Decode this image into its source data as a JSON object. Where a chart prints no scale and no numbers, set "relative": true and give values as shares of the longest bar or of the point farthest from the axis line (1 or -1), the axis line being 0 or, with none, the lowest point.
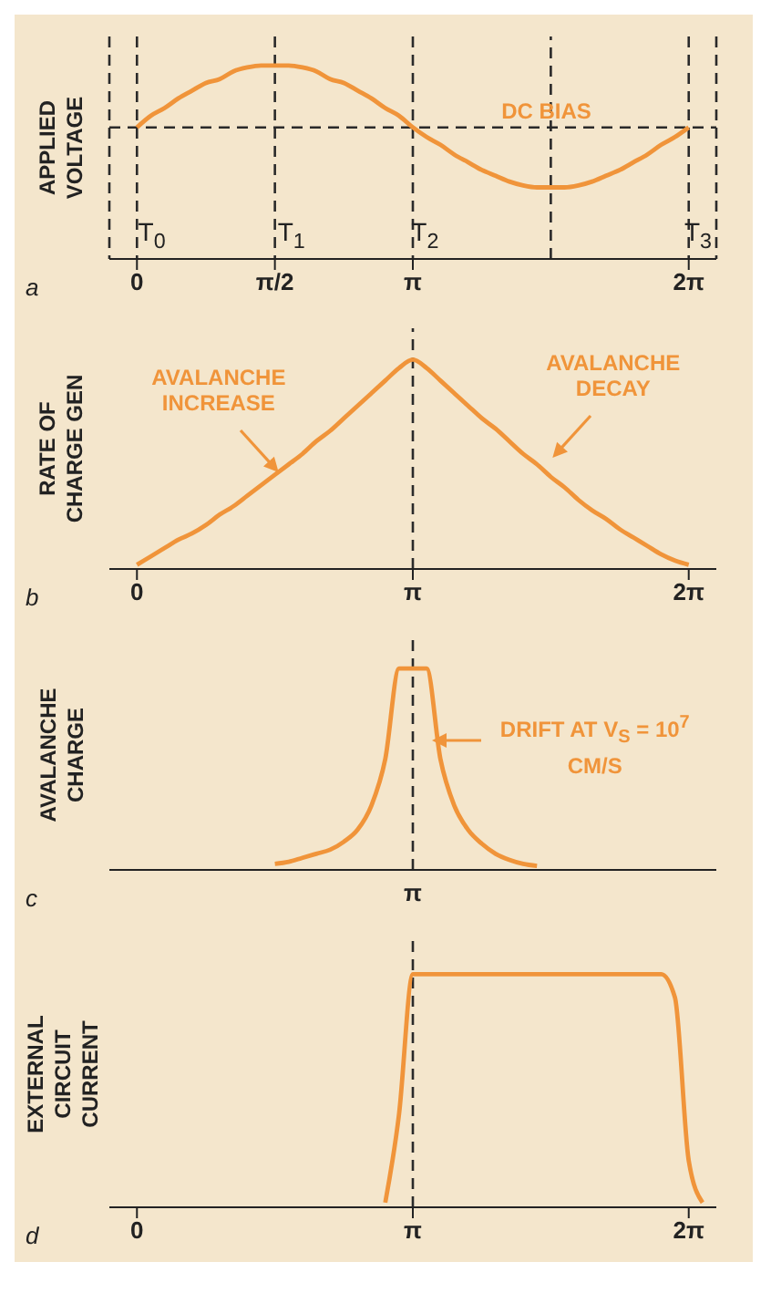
{
  "chart_data": [
    {
      "type": "line",
      "ylabel": "APPLIED VOLTAGE",
      "relative": true,
      "categories": [
        null,
        null,
        "0",
        null,
        null,
        null,
        null,
        null,
        null,
        null,
        null,
        null,
        "π/2",
        null,
        null,
        null,
        null,
        null,
        null,
        null,
        null,
        null,
        "π",
        null,
        null,
        null,
        null,
        null,
        null,
        null,
        null,
        null,
        null,
        null,
        null,
        null,
        null,
        null,
        null,
        null,
        null,
        null,
        "2π",
        null,
        null
      ],
      "series": [
        {
          "color": "#f0943a",
          "values": [
            null,
            null,
            0.68,
            0.74,
            0.78,
            0.83,
            0.87,
            0.91,
            0.93,
            0.97,
            0.99,
            1,
            1,
            1,
            0.99,
            0.97,
            0.93,
            0.91,
            0.87,
            0.83,
            0.78,
            0.74,
            0.68,
            0.63,
            0.59,
            0.54,
            0.5,
            0.46,
            0.43,
            0.4,
            0.38,
            0.37,
            0.37,
            0.37,
            0.38,
            0.4,
            0.43,
            0.46,
            0.5,
            0.54,
            0.59,
            0.63,
            0.68,
            null,
            null
          ]
        }
      ],
      "grid": "x",
      "ref_lines": [
        {
          "axis": "y",
          "value": 0.68,
          "color": "#2a2a2a",
          "line_style": "dashed"
        }
      ],
      "annotations": [
        "a",
        "T$_{0}$",
        "T$_{1}$",
        "T$_{2}$",
        "T$_{3}$",
        "DC BIAS"
      ]
    },
    {
      "type": "line",
      "ylabel": "RATE OF CHARGE GEN",
      "relative": true,
      "categories": [
        null,
        null,
        "0",
        null,
        null,
        null,
        null,
        null,
        null,
        null,
        null,
        null,
        null,
        null,
        null,
        null,
        null,
        null,
        null,
        null,
        null,
        null,
        "π",
        null,
        null,
        null,
        null,
        null,
        null,
        null,
        null,
        null,
        null,
        null,
        null,
        null,
        null,
        null,
        null,
        null,
        null,
        null,
        "2π",
        null,
        null
      ],
      "series": [
        {
          "color": "#f0943a",
          "values": [
            null,
            null,
            0.02,
            0.06,
            0.1,
            0.14,
            0.17,
            0.21,
            0.26,
            0.3,
            0.35,
            0.4,
            0.45,
            0.5,
            0.55,
            0.61,
            0.66,
            0.72,
            0.78,
            0.84,
            0.9,
            0.96,
            1.0,
            0.96,
            0.9,
            0.84,
            0.78,
            0.72,
            0.67,
            0.61,
            0.55,
            0.5,
            0.44,
            0.39,
            0.33,
            0.28,
            0.24,
            0.19,
            0.15,
            0.11,
            0.07,
            0.04,
            0.02,
            null,
            null
          ]
        }
      ],
      "ref_lines": [
        {
          "axis": "x",
          "value": "π",
          "color": "#2a2a2a",
          "line_style": "dashed"
        }
      ],
      "annotations": [
        "b",
        "AVALANCHE INCREASE",
        "AVALANCHE DECAY"
      ]
    },
    {
      "type": "line",
      "ylabel": "AVALANCHE CHARGE",
      "relative": true,
      "categories": [
        null,
        null,
        null,
        null,
        null,
        null,
        null,
        null,
        null,
        null,
        null,
        null,
        null,
        null,
        null,
        null,
        null,
        null,
        null,
        null,
        null,
        null,
        null,
        null,
        null,
        null,
        null,
        null,
        null,
        null,
        null,
        null,
        null,
        null,
        null,
        null,
        null,
        null,
        null,
        null,
        null,
        null,
        null,
        null,
        null
      ],
      "series": [
        {
          "color": "#f0943a",
          "values": [
            null,
            null,
            null,
            null,
            null,
            null,
            null,
            null,
            null,
            null,
            null,
            null,
            0.03,
            0.04,
            0.06,
            0.08,
            0.1,
            0.14,
            0.2,
            0.32,
            0.55,
            1.0,
            1.0,
            1.0,
            0.55,
            0.32,
            0.2,
            0.13,
            0.08,
            0.05,
            0.03,
            0.02,
            null,
            null,
            null,
            null,
            null,
            null,
            null,
            null,
            null,
            null,
            null,
            null,
            null
          ]
        }
      ],
      "annotations": [
        "c",
        "DRIFT AT V$_{S}$ = 10$^{7}$ CM/S",
        "π"
      ]
    },
    {
      "type": "line",
      "ylabel": "EXTERNAL CIRCUIT CURRENT",
      "relative": true,
      "categories": [
        null,
        null,
        "0",
        null,
        null,
        null,
        null,
        null,
        null,
        null,
        null,
        null,
        null,
        null,
        null,
        null,
        null,
        null,
        null,
        null,
        null,
        null,
        "π",
        null,
        null,
        null,
        null,
        null,
        null,
        null,
        null,
        null,
        null,
        null,
        null,
        null,
        null,
        null,
        null,
        null,
        null,
        null,
        "2π",
        null,
        null
      ],
      "series": [
        {
          "color": "#f0943a",
          "values": [
            null,
            null,
            null,
            null,
            null,
            null,
            null,
            null,
            null,
            null,
            null,
            null,
            null,
            null,
            null,
            null,
            null,
            null,
            null,
            null,
            0.02,
            0.4,
            1,
            1,
            1,
            1,
            1,
            1,
            1,
            1,
            1,
            1,
            1,
            1,
            1,
            1,
            1,
            1,
            1,
            1,
            1,
            0.9,
            0.2,
            0.02,
            null
          ]
        }
      ],
      "ref_lines": [
        {
          "axis": "x",
          "value": "π",
          "color": "#2a2a2a",
          "line_style": "dashed"
        }
      ],
      "annotations": [
        "d"
      ]
    }
  ]
}
